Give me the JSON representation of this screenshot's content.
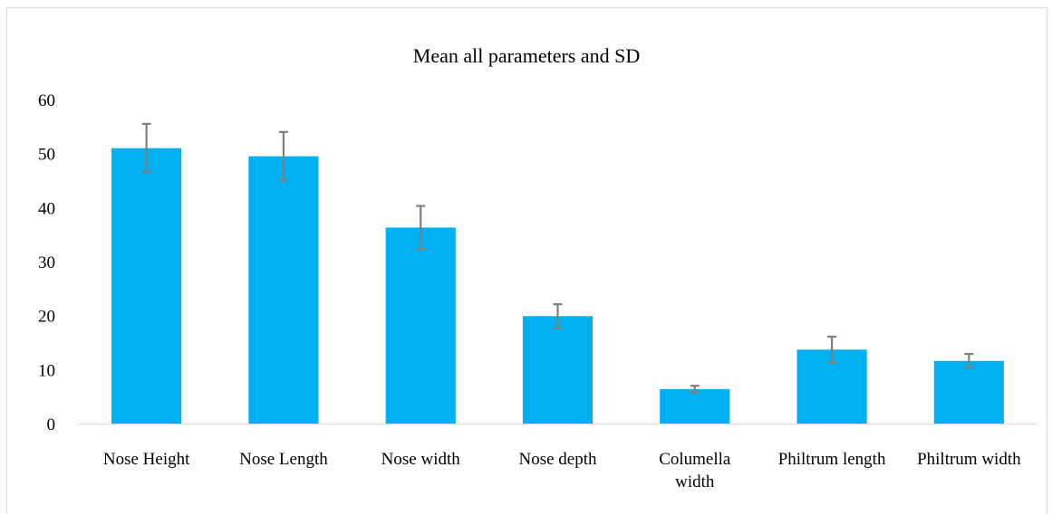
{
  "chart_data": {
    "type": "bar",
    "title": "Mean all parameters and SD",
    "xlabel": "",
    "ylabel": "",
    "categories": [
      [
        "Nose Height"
      ],
      [
        "Nose Length"
      ],
      [
        "Nose width"
      ],
      [
        "Nose depth"
      ],
      [
        "Columella",
        "width"
      ],
      [
        "Philtrum length"
      ],
      [
        "Philtrum width"
      ]
    ],
    "series": [
      {
        "values": [
          51,
          49.5,
          36.3,
          19.9,
          6.4,
          13.7,
          11.6
        ],
        "error": [
          4.5,
          4.5,
          4.0,
          2.2,
          0.6,
          2.4,
          1.3
        ]
      }
    ],
    "ylim": [
      0,
      60
    ],
    "yticks": [
      0,
      10,
      20,
      30,
      40,
      50,
      60
    ],
    "grid": false,
    "legend": "none",
    "colors": {
      "bar": "#00b0f0",
      "error_bar": "#7f7f7f",
      "axis": "#d9d9d9"
    }
  }
}
